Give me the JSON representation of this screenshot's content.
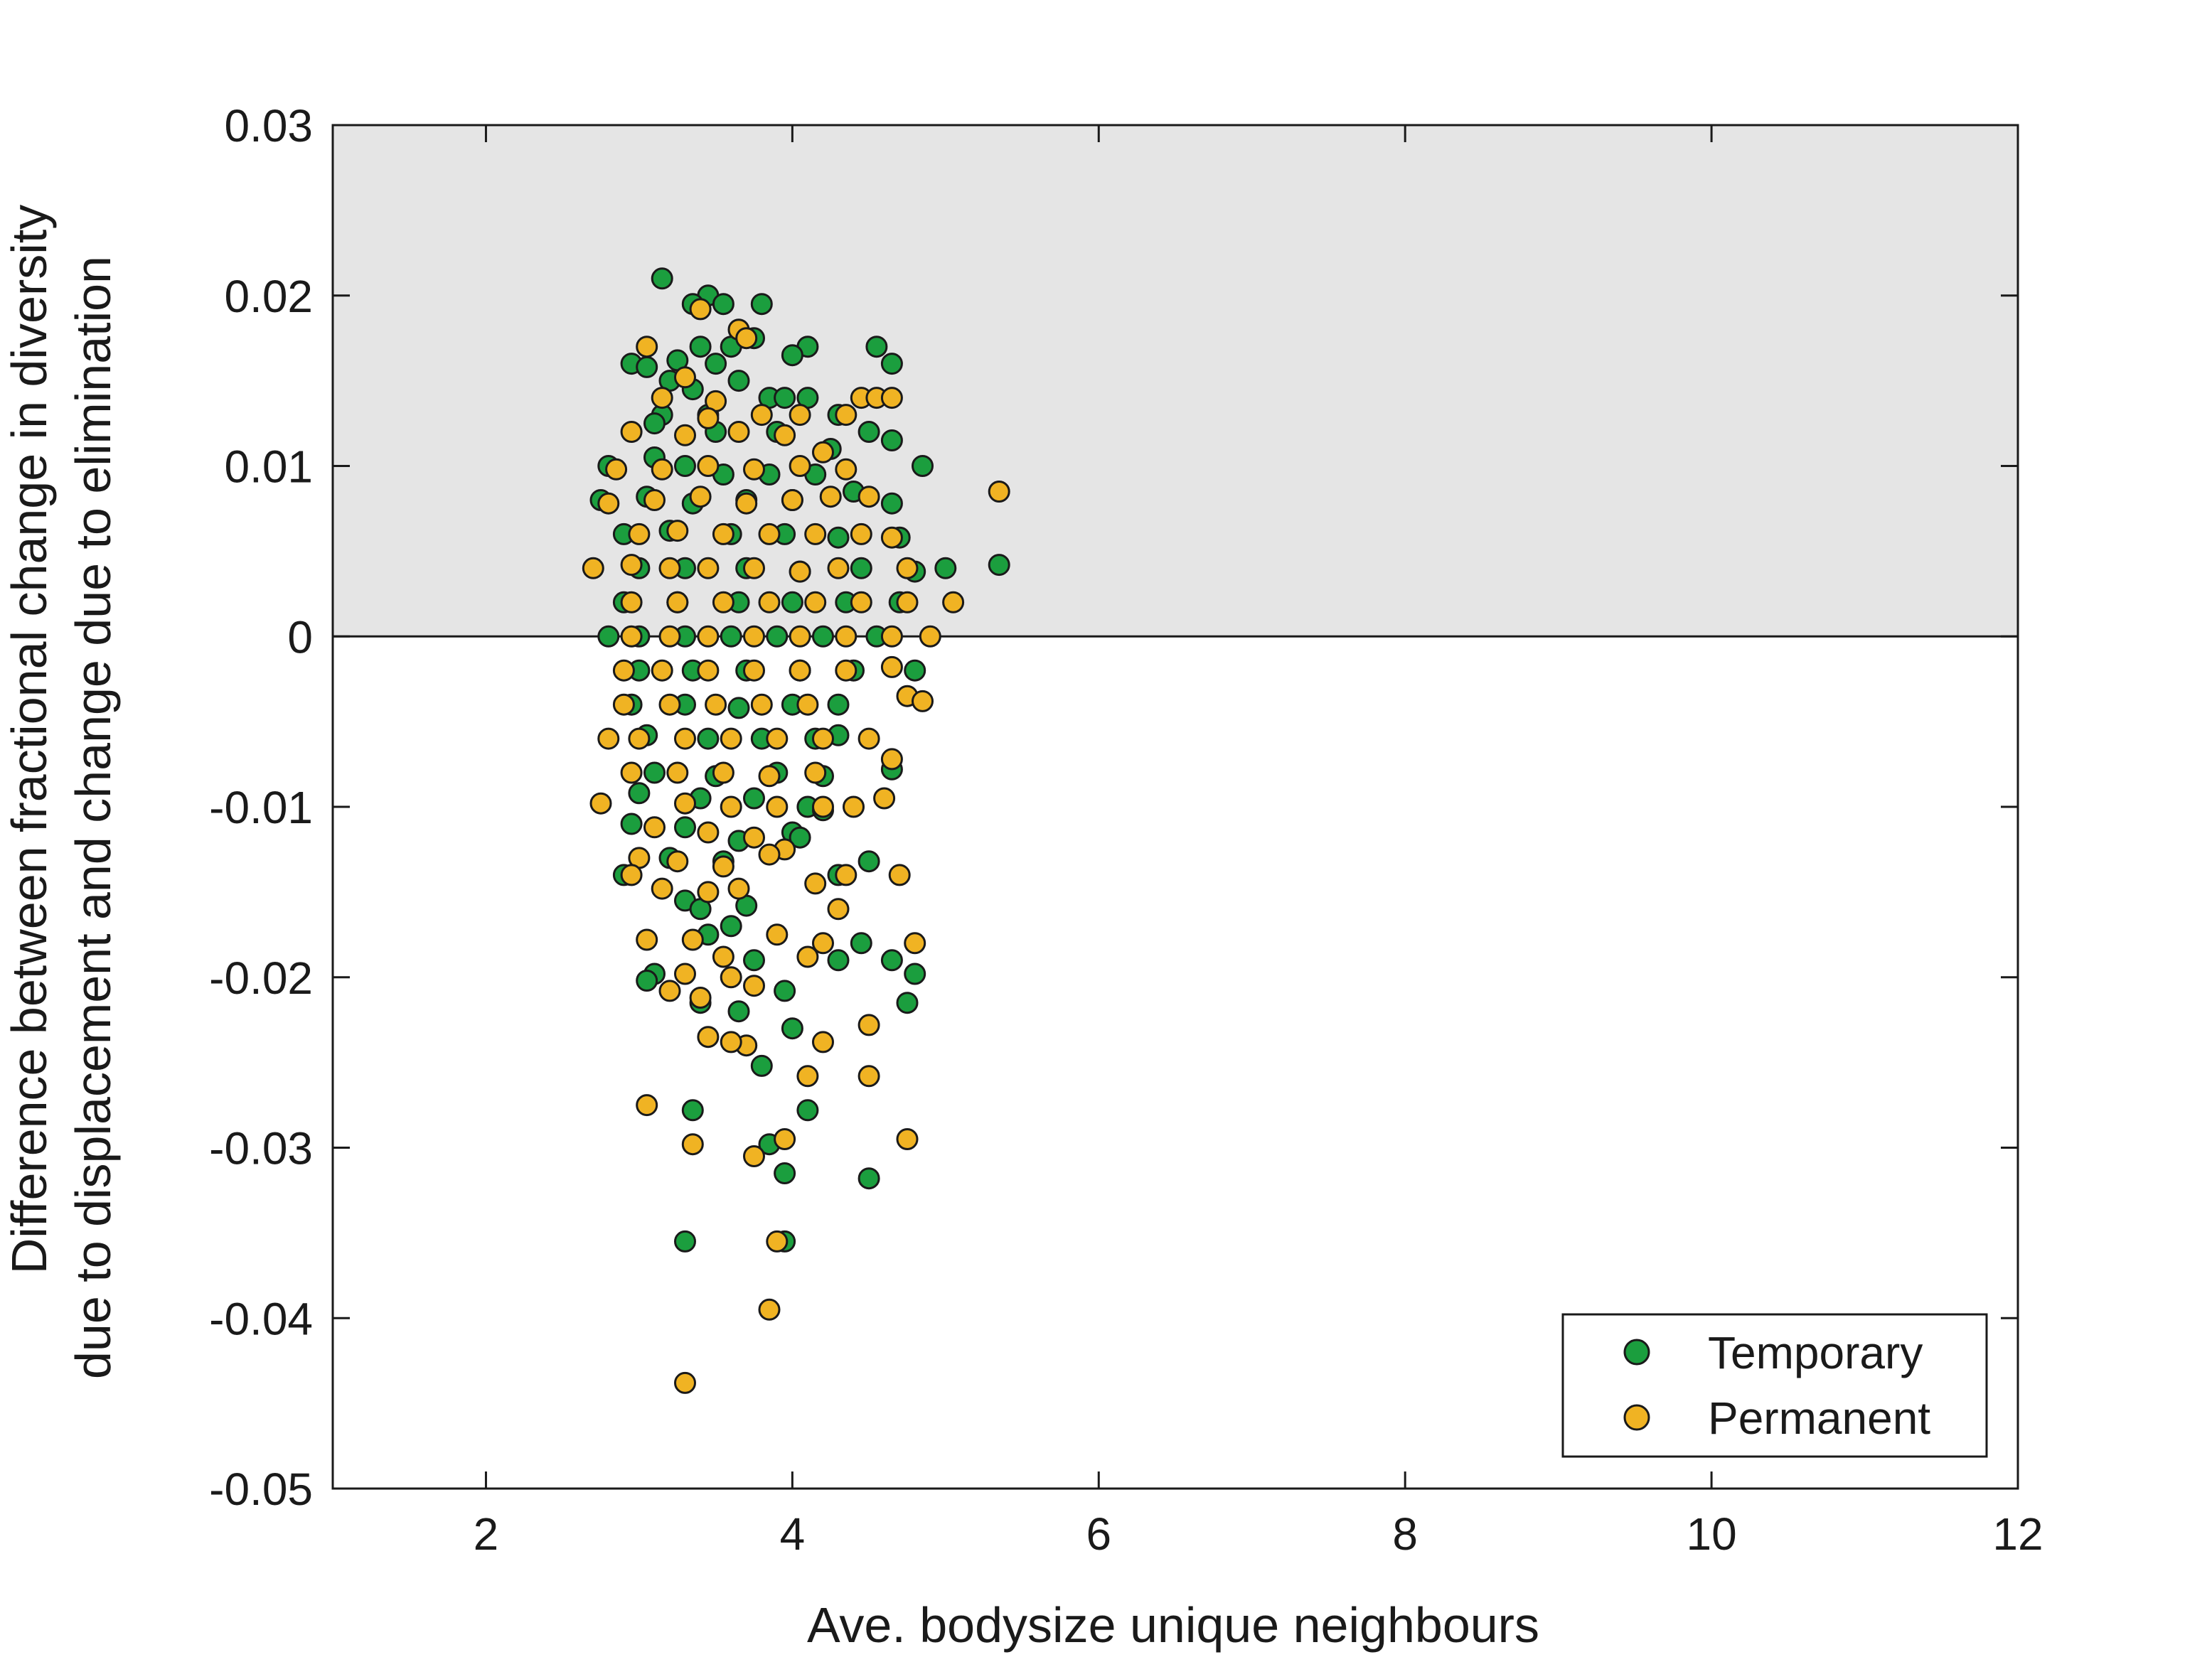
{
  "chart_data": {
    "type": "scatter",
    "xlabel": "Ave. bodysize unique neighbours",
    "ylabel_lines": [
      "Difference between fractional change in diversity",
      "due to displacement and change due to elimination"
    ],
    "xlim": [
      1,
      12
    ],
    "ylim": [
      -0.05,
      0.03
    ],
    "x_ticks": [
      2,
      4,
      6,
      8,
      10,
      12
    ],
    "y_ticks": [
      -0.05,
      -0.04,
      -0.03,
      -0.02,
      -0.01,
      0,
      0.01,
      0.02,
      0.03
    ],
    "x_tick_labels": [
      "2",
      "4",
      "6",
      "8",
      "10",
      "12"
    ],
    "y_tick_labels": [
      "-0.05",
      "-0.04",
      "-0.03",
      "-0.02",
      "-0.01",
      "0",
      "0.01",
      "0.02",
      "0.03"
    ],
    "shaded_region": {
      "y_from": 0,
      "y_to": 0.03,
      "color": "#e5e5e5"
    },
    "reference_line_y": 0,
    "grid": false,
    "legend_position": "bottom-right",
    "series": [
      {
        "name": "Temporary",
        "color": "#1b9e3e",
        "points": [
          [
            3.15,
            0.021
          ],
          [
            3.45,
            0.02
          ],
          [
            3.55,
            0.0195
          ],
          [
            3.8,
            0.0195
          ],
          [
            3.35,
            0.0195
          ],
          [
            3.4,
            0.017
          ],
          [
            3.6,
            0.017
          ],
          [
            4.1,
            0.017
          ],
          [
            4.55,
            0.017
          ],
          [
            2.95,
            0.016
          ],
          [
            3.05,
            0.0158
          ],
          [
            3.25,
            0.0162
          ],
          [
            3.5,
            0.016
          ],
          [
            3.75,
            0.0175
          ],
          [
            4.0,
            0.0165
          ],
          [
            4.65,
            0.016
          ],
          [
            3.2,
            0.015
          ],
          [
            3.35,
            0.0145
          ],
          [
            3.65,
            0.015
          ],
          [
            3.85,
            0.014
          ],
          [
            4.1,
            0.014
          ],
          [
            3.15,
            0.013
          ],
          [
            3.45,
            0.013
          ],
          [
            3.95,
            0.014
          ],
          [
            4.3,
            0.013
          ],
          [
            3.1,
            0.0125
          ],
          [
            3.5,
            0.012
          ],
          [
            3.9,
            0.012
          ],
          [
            4.25,
            0.011
          ],
          [
            4.5,
            0.012
          ],
          [
            4.65,
            0.0115
          ],
          [
            2.8,
            0.01
          ],
          [
            3.1,
            0.0105
          ],
          [
            3.3,
            0.01
          ],
          [
            3.55,
            0.0095
          ],
          [
            3.85,
            0.0095
          ],
          [
            4.15,
            0.0095
          ],
          [
            4.85,
            0.01
          ],
          [
            2.75,
            0.008
          ],
          [
            3.05,
            0.0082
          ],
          [
            3.35,
            0.0078
          ],
          [
            3.7,
            0.008
          ],
          [
            4.0,
            0.008
          ],
          [
            4.4,
            0.0085
          ],
          [
            4.65,
            0.0078
          ],
          [
            2.9,
            0.006
          ],
          [
            3.2,
            0.0062
          ],
          [
            3.6,
            0.006
          ],
          [
            3.95,
            0.006
          ],
          [
            4.3,
            0.0058
          ],
          [
            4.7,
            0.0058
          ],
          [
            5.0,
            0.004
          ],
          [
            5.35,
            0.0042
          ],
          [
            3.0,
            0.004
          ],
          [
            3.3,
            0.004
          ],
          [
            3.7,
            0.004
          ],
          [
            4.05,
            0.0038
          ],
          [
            4.45,
            0.004
          ],
          [
            4.8,
            0.0038
          ],
          [
            2.9,
            0.002
          ],
          [
            3.25,
            0.002
          ],
          [
            3.65,
            0.002
          ],
          [
            4.0,
            0.002
          ],
          [
            4.35,
            0.002
          ],
          [
            4.7,
            0.002
          ],
          [
            2.8,
            0
          ],
          [
            3.0,
            0
          ],
          [
            3.3,
            0
          ],
          [
            3.6,
            0
          ],
          [
            3.9,
            0
          ],
          [
            4.2,
            0
          ],
          [
            4.55,
            0
          ],
          [
            3.0,
            -0.002
          ],
          [
            3.35,
            -0.002
          ],
          [
            3.7,
            -0.002
          ],
          [
            4.05,
            -0.002
          ],
          [
            4.4,
            -0.002
          ],
          [
            4.8,
            -0.002
          ],
          [
            2.95,
            -0.004
          ],
          [
            3.3,
            -0.004
          ],
          [
            3.65,
            -0.0042
          ],
          [
            4.0,
            -0.004
          ],
          [
            4.3,
            -0.004
          ],
          [
            3.05,
            -0.0058
          ],
          [
            3.45,
            -0.006
          ],
          [
            3.8,
            -0.006
          ],
          [
            4.15,
            -0.006
          ],
          [
            4.3,
            -0.0058
          ],
          [
            4.65,
            -0.0078
          ],
          [
            3.1,
            -0.008
          ],
          [
            3.5,
            -0.0082
          ],
          [
            3.9,
            -0.008
          ],
          [
            4.2,
            -0.0082
          ],
          [
            3.0,
            -0.0092
          ],
          [
            3.4,
            -0.0095
          ],
          [
            3.75,
            -0.0095
          ],
          [
            4.1,
            -0.01
          ],
          [
            4.2,
            -0.0102
          ],
          [
            2.95,
            -0.011
          ],
          [
            3.3,
            -0.0112
          ],
          [
            3.65,
            -0.012
          ],
          [
            4.0,
            -0.0115
          ],
          [
            4.05,
            -0.0118
          ],
          [
            3.2,
            -0.013
          ],
          [
            3.55,
            -0.0132
          ],
          [
            4.3,
            -0.014
          ],
          [
            4.5,
            -0.0132
          ],
          [
            2.9,
            -0.014
          ],
          [
            3.3,
            -0.0155
          ],
          [
            3.4,
            -0.016
          ],
          [
            3.7,
            -0.0158
          ],
          [
            3.6,
            -0.017
          ],
          [
            3.45,
            -0.0175
          ],
          [
            4.45,
            -0.018
          ],
          [
            3.1,
            -0.0198
          ],
          [
            3.05,
            -0.0202
          ],
          [
            3.75,
            -0.019
          ],
          [
            4.3,
            -0.019
          ],
          [
            4.65,
            -0.019
          ],
          [
            4.8,
            -0.0198
          ],
          [
            3.4,
            -0.0215
          ],
          [
            3.65,
            -0.022
          ],
          [
            3.95,
            -0.0208
          ],
          [
            4.75,
            -0.0215
          ],
          [
            4.0,
            -0.023
          ],
          [
            3.8,
            -0.0252
          ],
          [
            3.35,
            -0.0278
          ],
          [
            4.1,
            -0.0278
          ],
          [
            3.85,
            -0.0298
          ],
          [
            3.95,
            -0.0315
          ],
          [
            4.5,
            -0.0318
          ],
          [
            3.3,
            -0.0355
          ],
          [
            3.95,
            -0.0355
          ]
        ]
      },
      {
        "name": "Permanent",
        "color": "#f0b323",
        "points": [
          [
            3.4,
            0.0192
          ],
          [
            3.65,
            0.018
          ],
          [
            3.05,
            0.017
          ],
          [
            3.3,
            0.0152
          ],
          [
            3.5,
            0.0138
          ],
          [
            3.7,
            0.0175
          ],
          [
            3.15,
            0.014
          ],
          [
            3.45,
            0.0128
          ],
          [
            3.8,
            0.013
          ],
          [
            4.05,
            0.013
          ],
          [
            4.35,
            0.013
          ],
          [
            4.45,
            0.014
          ],
          [
            4.55,
            0.014
          ],
          [
            4.65,
            0.014
          ],
          [
            2.95,
            0.012
          ],
          [
            3.3,
            0.0118
          ],
          [
            3.65,
            0.012
          ],
          [
            3.95,
            0.0118
          ],
          [
            4.2,
            0.0108
          ],
          [
            2.85,
            0.0098
          ],
          [
            3.15,
            0.0098
          ],
          [
            3.45,
            0.01
          ],
          [
            3.75,
            0.0098
          ],
          [
            4.05,
            0.01
          ],
          [
            4.35,
            0.0098
          ],
          [
            2.8,
            0.0078
          ],
          [
            3.1,
            0.008
          ],
          [
            3.4,
            0.0082
          ],
          [
            3.7,
            0.0078
          ],
          [
            4.0,
            0.008
          ],
          [
            4.25,
            0.0082
          ],
          [
            4.5,
            0.0082
          ],
          [
            5.35,
            0.0085
          ],
          [
            3.0,
            0.006
          ],
          [
            3.25,
            0.0062
          ],
          [
            3.55,
            0.006
          ],
          [
            3.85,
            0.006
          ],
          [
            4.15,
            0.006
          ],
          [
            4.45,
            0.006
          ],
          [
            4.65,
            0.0058
          ],
          [
            2.7,
            0.004
          ],
          [
            2.95,
            0.0042
          ],
          [
            3.2,
            0.004
          ],
          [
            3.45,
            0.004
          ],
          [
            3.75,
            0.004
          ],
          [
            4.05,
            0.0038
          ],
          [
            4.3,
            0.004
          ],
          [
            4.75,
            0.004
          ],
          [
            2.95,
            0.002
          ],
          [
            3.25,
            0.002
          ],
          [
            3.55,
            0.002
          ],
          [
            3.85,
            0.002
          ],
          [
            4.15,
            0.002
          ],
          [
            4.45,
            0.002
          ],
          [
            4.75,
            0.002
          ],
          [
            5.05,
            0.002
          ],
          [
            2.95,
            0
          ],
          [
            3.2,
            0
          ],
          [
            3.45,
            0
          ],
          [
            3.75,
            0
          ],
          [
            4.05,
            0
          ],
          [
            4.35,
            0
          ],
          [
            4.65,
            0
          ],
          [
            4.9,
            0
          ],
          [
            2.9,
            -0.002
          ],
          [
            3.15,
            -0.002
          ],
          [
            3.45,
            -0.002
          ],
          [
            3.75,
            -0.002
          ],
          [
            4.05,
            -0.002
          ],
          [
            4.35,
            -0.002
          ],
          [
            4.65,
            -0.0018
          ],
          [
            2.9,
            -0.004
          ],
          [
            3.2,
            -0.004
          ],
          [
            3.5,
            -0.004
          ],
          [
            3.8,
            -0.004
          ],
          [
            4.1,
            -0.004
          ],
          [
            4.75,
            -0.0035
          ],
          [
            4.85,
            -0.0038
          ],
          [
            2.8,
            -0.006
          ],
          [
            3.0,
            -0.006
          ],
          [
            3.3,
            -0.006
          ],
          [
            3.6,
            -0.006
          ],
          [
            3.9,
            -0.006
          ],
          [
            4.2,
            -0.006
          ],
          [
            4.5,
            -0.006
          ],
          [
            2.95,
            -0.008
          ],
          [
            3.25,
            -0.008
          ],
          [
            3.55,
            -0.008
          ],
          [
            3.85,
            -0.0082
          ],
          [
            4.15,
            -0.008
          ],
          [
            4.65,
            -0.0072
          ],
          [
            2.75,
            -0.0098
          ],
          [
            3.3,
            -0.0098
          ],
          [
            3.6,
            -0.01
          ],
          [
            3.9,
            -0.01
          ],
          [
            4.2,
            -0.01
          ],
          [
            4.4,
            -0.01
          ],
          [
            4.6,
            -0.0095
          ],
          [
            3.1,
            -0.0112
          ],
          [
            3.45,
            -0.0115
          ],
          [
            3.75,
            -0.0118
          ],
          [
            3.95,
            -0.0125
          ],
          [
            3.0,
            -0.013
          ],
          [
            3.25,
            -0.0132
          ],
          [
            3.55,
            -0.0135
          ],
          [
            3.85,
            -0.0128
          ],
          [
            2.95,
            -0.014
          ],
          [
            3.15,
            -0.0148
          ],
          [
            3.45,
            -0.015
          ],
          [
            3.65,
            -0.0148
          ],
          [
            4.15,
            -0.0145
          ],
          [
            4.35,
            -0.014
          ],
          [
            4.7,
            -0.014
          ],
          [
            4.3,
            -0.016
          ],
          [
            3.05,
            -0.0178
          ],
          [
            3.35,
            -0.0178
          ],
          [
            3.55,
            -0.0188
          ],
          [
            3.9,
            -0.0175
          ],
          [
            4.2,
            -0.018
          ],
          [
            4.8,
            -0.018
          ],
          [
            4.1,
            -0.0188
          ],
          [
            3.3,
            -0.0198
          ],
          [
            3.6,
            -0.02
          ],
          [
            3.75,
            -0.0205
          ],
          [
            3.2,
            -0.0208
          ],
          [
            3.4,
            -0.0212
          ],
          [
            4.5,
            -0.0228
          ],
          [
            3.45,
            -0.0235
          ],
          [
            3.7,
            -0.024
          ],
          [
            3.6,
            -0.0238
          ],
          [
            4.2,
            -0.0238
          ],
          [
            4.1,
            -0.0258
          ],
          [
            4.5,
            -0.0258
          ],
          [
            3.05,
            -0.0275
          ],
          [
            3.35,
            -0.0298
          ],
          [
            3.95,
            -0.0295
          ],
          [
            3.75,
            -0.0305
          ],
          [
            4.75,
            -0.0295
          ],
          [
            3.9,
            -0.0355
          ],
          [
            3.85,
            -0.0395
          ],
          [
            3.3,
            -0.0438
          ]
        ]
      }
    ]
  }
}
